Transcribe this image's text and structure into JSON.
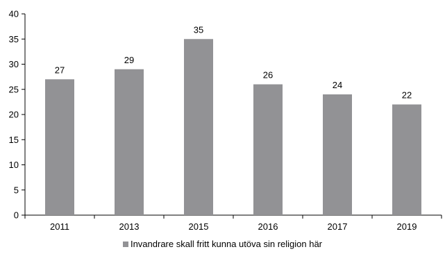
{
  "chart_data": {
    "type": "bar",
    "categories": [
      "2011",
      "2013",
      "2015",
      "2016",
      "2017",
      "2019"
    ],
    "series": [
      {
        "name": "Invandrare skall fritt kunna utöva sin religion här",
        "values": [
          27,
          29,
          35,
          26,
          24,
          22
        ],
        "color": "#929295"
      }
    ],
    "data_labels": [
      "27",
      "29",
      "35",
      "26",
      "24",
      "22"
    ],
    "ylim": [
      0,
      40
    ],
    "yticks": [
      "0",
      "5",
      "10",
      "15",
      "20",
      "25",
      "30",
      "35",
      "40"
    ],
    "grid": false,
    "legend_position": "bottom"
  }
}
